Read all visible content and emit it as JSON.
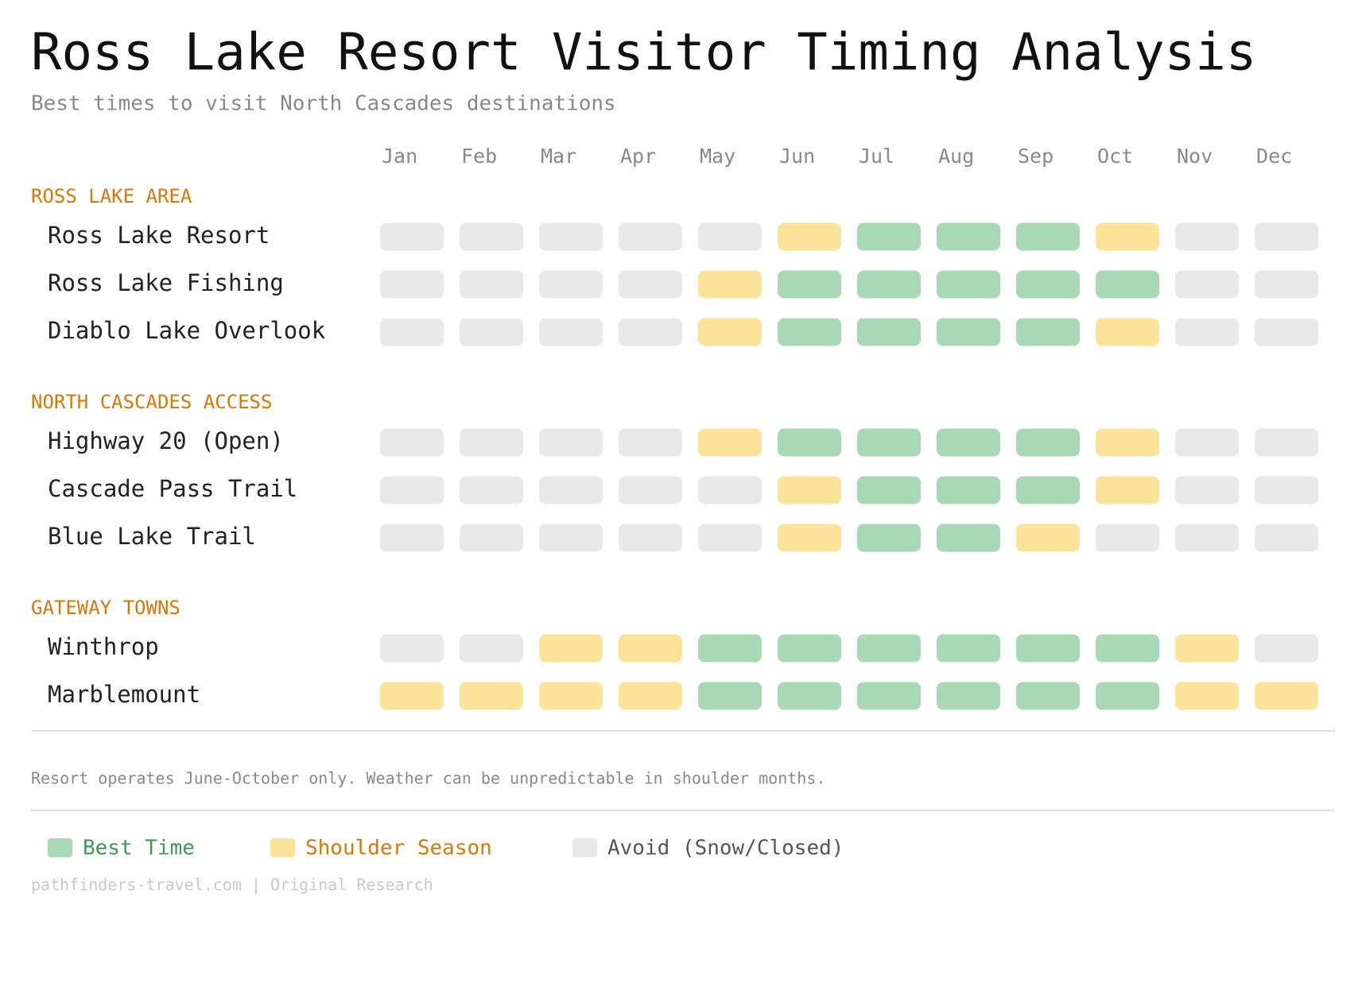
{
  "header": {
    "title": "Ross Lake Resort Visitor Timing Analysis",
    "subtitle": "Best times to visit North Cascades destinations"
  },
  "months": [
    "Jan",
    "Feb",
    "Mar",
    "Apr",
    "May",
    "Jun",
    "Jul",
    "Aug",
    "Sep",
    "Oct",
    "Nov",
    "Dec"
  ],
  "legend": [
    {
      "label": "Best Time",
      "color": "#a8d8b4",
      "text_color": "#3f9a4e"
    },
    {
      "label": "Shoulder Season",
      "color": "#fce39a",
      "text_color": "#d97706"
    },
    {
      "label": "Avoid (Snow/Closed)",
      "color": "#e8e8e8",
      "text_color": "#555555"
    }
  ],
  "sections": [
    {
      "title": "ROSS LAKE AREA",
      "rows": [
        {
          "label": "Ross Lake Resort",
          "levels": [
            2,
            2,
            2,
            2,
            2,
            1,
            0,
            0,
            0,
            1,
            2,
            2
          ]
        },
        {
          "label": "Ross Lake Fishing",
          "levels": [
            2,
            2,
            2,
            2,
            1,
            0,
            0,
            0,
            0,
            0,
            2,
            2
          ]
        },
        {
          "label": "Diablo Lake Overlook",
          "levels": [
            2,
            2,
            2,
            2,
            1,
            0,
            0,
            0,
            0,
            1,
            2,
            2
          ]
        }
      ]
    },
    {
      "title": "NORTH CASCADES ACCESS",
      "rows": [
        {
          "label": "Highway 20 (Open)",
          "levels": [
            2,
            2,
            2,
            2,
            1,
            0,
            0,
            0,
            0,
            1,
            2,
            2
          ]
        },
        {
          "label": "Cascade Pass Trail",
          "levels": [
            2,
            2,
            2,
            2,
            2,
            1,
            0,
            0,
            0,
            1,
            2,
            2
          ]
        },
        {
          "label": "Blue Lake Trail",
          "levels": [
            2,
            2,
            2,
            2,
            2,
            1,
            0,
            0,
            1,
            2,
            2,
            2
          ]
        }
      ]
    },
    {
      "title": "GATEWAY TOWNS",
      "rows": [
        {
          "label": "Winthrop",
          "levels": [
            2,
            2,
            1,
            1,
            0,
            0,
            0,
            0,
            0,
            0,
            1,
            2
          ]
        },
        {
          "label": "Marblemount",
          "levels": [
            1,
            1,
            1,
            1,
            0,
            0,
            0,
            0,
            0,
            0,
            1,
            1
          ]
        }
      ]
    }
  ],
  "note": "Resort operates June-October only. Weather can be unpredictable in shoulder months.",
  "footer": "pathfinders-travel.com | Original Research"
}
